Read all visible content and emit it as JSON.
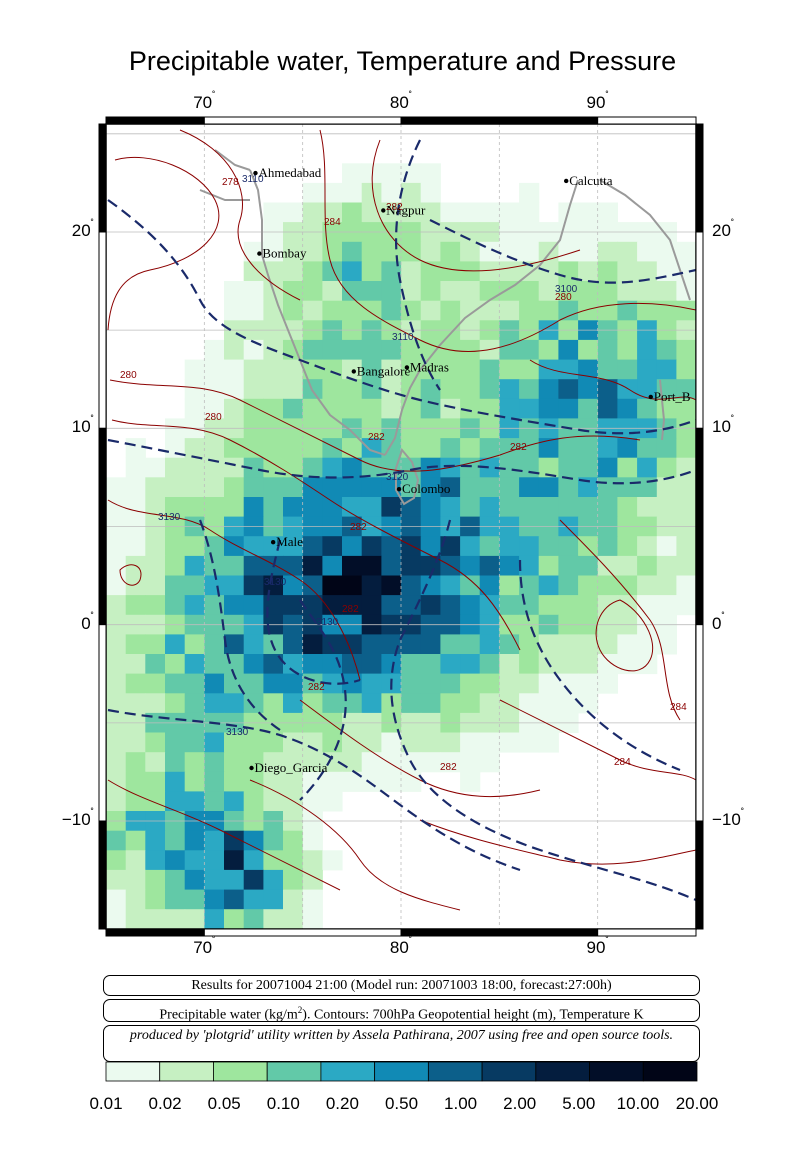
{
  "title": "Precipitable water, Temperature and Pressure",
  "axes": {
    "lon_ticks": [
      "70",
      "80",
      "90"
    ],
    "lat_ticks_left": [
      "20",
      "10",
      "0",
      "−10"
    ],
    "lat_ticks_right": [
      "20",
      "10",
      "0",
      "−10"
    ],
    "degree_symbol": "˚"
  },
  "cities": [
    {
      "name": "Ahmedabad",
      "lon": 72.6,
      "lat": 23.0
    },
    {
      "name": "Calcutta",
      "lon": 88.4,
      "lat": 22.6
    },
    {
      "name": "Nagpur",
      "lon": 79.1,
      "lat": 21.1
    },
    {
      "name": "Bombay",
      "lon": 72.8,
      "lat": 18.9
    },
    {
      "name": "Madras",
      "lon": 80.3,
      "lat": 13.1
    },
    {
      "name": "Bangalore",
      "lon": 77.6,
      "lat": 12.9
    },
    {
      "name": "Port_B",
      "lon": 92.7,
      "lat": 11.6
    },
    {
      "name": "Colombo",
      "lon": 79.9,
      "lat": 6.9
    },
    {
      "name": "Male",
      "lon": 73.5,
      "lat": 4.2
    },
    {
      "name": "Diego_Garcia",
      "lon": 72.4,
      "lat": -7.3
    }
  ],
  "temperature_contour_labels": [
    "278",
    "282",
    "284",
    "280",
    "280",
    "282",
    "282",
    "282",
    "282",
    "282",
    "282",
    "280",
    "284",
    "284"
  ],
  "height_contour_labels": [
    "3110",
    "3100",
    "3110",
    "3120",
    "3130",
    "3130",
    "3130",
    "3130"
  ],
  "info": {
    "results": "Results for 20071004 21:00 (Model run: 20071003 18:00, forecast:27:00h)",
    "legend_prefix": "Precipitable water (kg/m",
    "legend_sup": "2",
    "legend_suffix": ").  Contours: 700hPa Geopotential height (m), Temperature K",
    "credit": "produced by 'plotgrid' utility written by Assela Pathirana, 2007 using free and open source tools."
  },
  "colorbar": {
    "labels": [
      "0.01",
      "0.02",
      "0.05",
      "0.10",
      "0.20",
      "0.50",
      "1.00",
      "2.00",
      "5.00",
      "10.00",
      "20.00"
    ],
    "colors": [
      "#ebfaef",
      "#c6f0c2",
      "#9ee69e",
      "#62c9a8",
      "#2ba9c4",
      "#118ab5",
      "#0c5f8a",
      "#073a62",
      "#041d3e",
      "#020e28",
      "#010517"
    ]
  },
  "colors": {
    "temperature_contour": "#8b0000",
    "height_contour": "#1a2a6a",
    "coastline": "#9a9a9a",
    "grid": "#bdbdbd"
  }
}
